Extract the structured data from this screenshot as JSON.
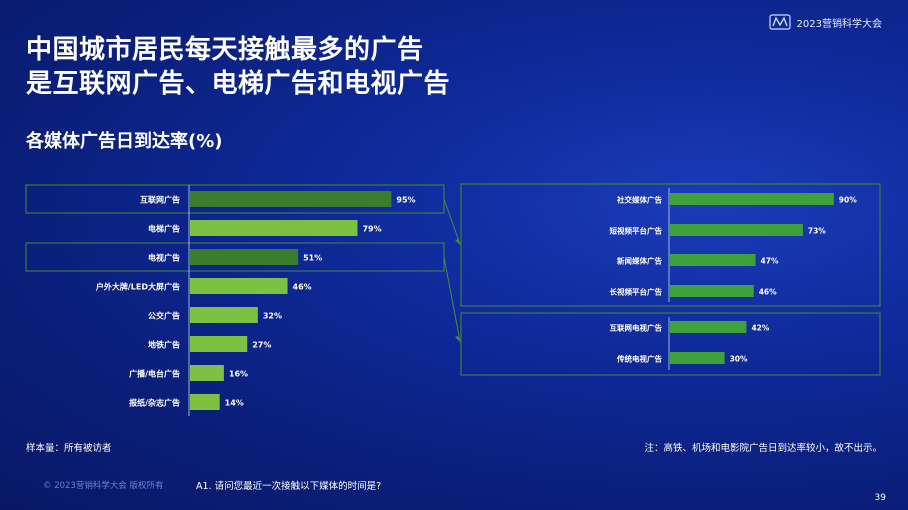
{
  "brand": {
    "logo_icon": "conference-logo-icon",
    "name": "2023营销科学大会"
  },
  "title": {
    "line1": "中国城市居民每天接触最多的广告",
    "line2": "是互联网广告、电梯广告和电视广告"
  },
  "subtitle": "各媒体广告日到达率(%)",
  "colors": {
    "dark_green": "#3a7d2e",
    "light_green": "#7cc142",
    "mid_green": "#3fa13b",
    "frame": "#4a8a3c"
  },
  "chart_data": [
    {
      "type": "bar",
      "orientation": "horizontal",
      "categories": [
        "互联网广告",
        "电梯广告",
        "电视广告",
        "户外大牌/LED大屏广告",
        "公交广告",
        "地铁广告",
        "广播/电台广告",
        "报纸/杂志广告"
      ],
      "values": [
        95,
        79,
        51,
        46,
        32,
        27,
        16,
        14
      ],
      "data_labels": [
        "95%",
        "79%",
        "51%",
        "46%",
        "32%",
        "27%",
        "16%",
        "14%"
      ],
      "highlighted": [
        "互联网广告",
        "电视广告"
      ],
      "xlim": [
        0,
        100
      ]
    },
    {
      "type": "bar",
      "orientation": "horizontal",
      "breakdown_of": "互联网广告",
      "categories": [
        "社交媒体广告",
        "短视频平台广告",
        "新闻媒体广告",
        "长视频平台广告"
      ],
      "values": [
        90,
        73,
        47,
        46
      ],
      "data_labels": [
        "90%",
        "73%",
        "47%",
        "46%"
      ],
      "xlim": [
        0,
        100
      ]
    },
    {
      "type": "bar",
      "orientation": "horizontal",
      "breakdown_of": "电视广告",
      "categories": [
        "互联网电视广告",
        "传统电视广告"
      ],
      "values": [
        42,
        30
      ],
      "data_labels": [
        "42%",
        "30%"
      ],
      "xlim": [
        0,
        100
      ]
    }
  ],
  "footer": {
    "sample": "样本量：所有被访者",
    "note": "注：高铁、机场和电影院广告日到达率较小，故不出示。",
    "copyright": "© 2023营销科学大会 版权所有",
    "question": "A1. 请问您最近一次接触以下媒体的时间是?",
    "page": "39"
  }
}
